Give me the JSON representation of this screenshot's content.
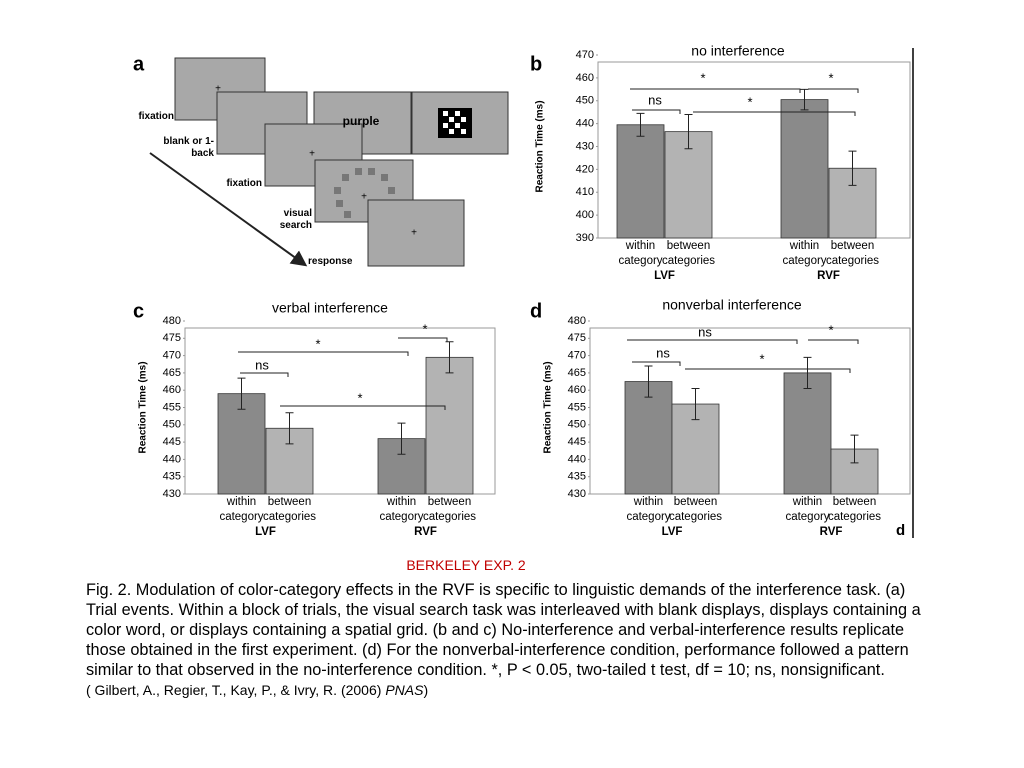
{
  "panel_a": {
    "letter": "a",
    "labels": [
      "fixation",
      "blank or 1-back",
      "fixation",
      "visual search",
      "response"
    ],
    "word": "purple",
    "cross": "+"
  },
  "chart_data": [
    {
      "type": "bar",
      "letter": "b",
      "title": "no interference",
      "ylabel": "Reaction Time (ms)",
      "categories": [
        "LVF",
        "RVF"
      ],
      "series": [
        {
          "name": "within category",
          "color": "#8a8a8a",
          "values": [
            439.5,
            450.5
          ],
          "errors": [
            5,
            4.5
          ]
        },
        {
          "name": "between categories",
          "color": "#b3b3b3",
          "values": [
            436.5,
            420.5
          ],
          "errors": [
            7.5,
            7.5
          ]
        }
      ],
      "ylim": [
        390,
        470
      ],
      "yticks": [
        390,
        400,
        410,
        420,
        430,
        440,
        450,
        460,
        470
      ],
      "annotations": [
        "*",
        "*",
        "ns",
        "*"
      ]
    },
    {
      "type": "bar",
      "letter": "c",
      "title": "verbal interference",
      "ylabel": "Reaction Time (ms)",
      "categories": [
        "LVF",
        "RVF"
      ],
      "series": [
        {
          "name": "within category",
          "color": "#8a8a8a",
          "values": [
            459,
            446
          ],
          "errors": [
            4.5,
            4.5
          ]
        },
        {
          "name": "between categories",
          "color": "#b3b3b3",
          "values": [
            449,
            469.5
          ],
          "errors": [
            4.5,
            4.5
          ]
        }
      ],
      "ylim": [
        430,
        480
      ],
      "yticks": [
        430,
        435,
        440,
        445,
        450,
        455,
        460,
        465,
        470,
        475,
        480
      ],
      "annotations": [
        "*",
        "*",
        "ns",
        "*"
      ]
    },
    {
      "type": "bar",
      "letter": "d",
      "title": "nonverbal interference",
      "ylabel": "Reaction Time (ms)",
      "categories": [
        "LVF",
        "RVF"
      ],
      "series": [
        {
          "name": "within category",
          "color": "#8a8a8a",
          "values": [
            462.5,
            465
          ],
          "errors": [
            4.5,
            4.5
          ]
        },
        {
          "name": "between categories",
          "color": "#b3b3b3",
          "values": [
            456,
            443
          ],
          "errors": [
            4.5,
            4
          ]
        }
      ],
      "ylim": [
        430,
        480
      ],
      "yticks": [
        430,
        435,
        440,
        445,
        450,
        455,
        460,
        465,
        470,
        475,
        480
      ],
      "annotations": [
        "ns",
        "*",
        "ns",
        "*"
      ],
      "corner_mark": "d"
    }
  ],
  "caption": {
    "heading": "BERKELEY EXP. 2",
    "text": "Fig. 2. Modulation of color-category effects in the RVF is specific to linguistic demands of the interference task. (a) Trial events. Within a block of trials, the visual search task was interleaved with blank displays, displays containing a color word, or displays containing a spatial grid. (b and c) No-interference and verbal-interference results replicate those obtained in the first experiment. (d) For the nonverbal-interference condition, performance followed a pattern similar to that observed in the no-interference condition. *, P < 0.05, two-tailed t test, df = 10; ns, nonsignificant.",
    "citation": "( Gilbert, A., Regier, T., Kay, P., & Ivry, R. (2006) ",
    "journal": "PNAS",
    "citation_end": ")"
  }
}
